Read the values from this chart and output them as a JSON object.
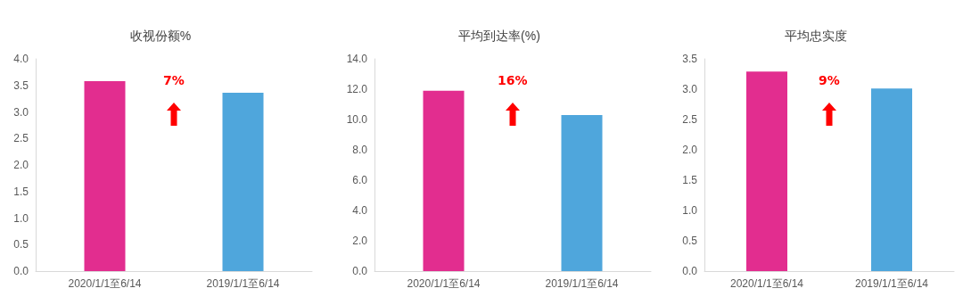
{
  "chart_data": [
    {
      "type": "bar",
      "title": "收视份额%",
      "categories": [
        "2020/1/1至6/14",
        "2019/1/1至6/14"
      ],
      "values": [
        3.58,
        3.36
      ],
      "colors": [
        "#e22d8f",
        "#4fa6dc"
      ],
      "ylim": [
        0,
        4
      ],
      "yticks": [
        {
          "value": 0,
          "label": "0.0"
        },
        {
          "value": 0.5,
          "label": "0.5"
        },
        {
          "value": 1,
          "label": "1.0"
        },
        {
          "value": 1.5,
          "label": "1.5"
        },
        {
          "value": 2,
          "label": "2.0"
        },
        {
          "value": 2.5,
          "label": "2.5"
        },
        {
          "value": 3,
          "label": "3.0"
        },
        {
          "value": 3.5,
          "label": "3.5"
        },
        {
          "value": 4,
          "label": "4.0"
        }
      ],
      "grid": false,
      "annotations": [
        "7%"
      ]
    },
    {
      "type": "bar",
      "title": "平均到达率(%)",
      "categories": [
        "2020/1/1至6/14",
        "2019/1/1至6/14"
      ],
      "values": [
        11.9,
        10.3
      ],
      "colors": [
        "#e22d8f",
        "#4fa6dc"
      ],
      "ylim": [
        0,
        14
      ],
      "yticks": [
        {
          "value": 0,
          "label": "0.0"
        },
        {
          "value": 2,
          "label": "2.0"
        },
        {
          "value": 4,
          "label": "4.0"
        },
        {
          "value": 6,
          "label": "6.0"
        },
        {
          "value": 8,
          "label": "8.0"
        },
        {
          "value": 10,
          "label": "10.0"
        },
        {
          "value": 12,
          "label": "12.0"
        },
        {
          "value": 14,
          "label": "14.0"
        }
      ],
      "grid": false,
      "annotations": [
        "16%"
      ]
    },
    {
      "type": "bar",
      "title": "平均忠实度",
      "categories": [
        "2020/1/1至6/14",
        "2019/1/1至6/14"
      ],
      "values": [
        3.29,
        3.01
      ],
      "colors": [
        "#e22d8f",
        "#4fa6dc"
      ],
      "ylim": [
        0,
        3.5
      ],
      "yticks": [
        {
          "value": 0,
          "label": "0.0"
        },
        {
          "value": 0.5,
          "label": "0.5"
        },
        {
          "value": 1,
          "label": "1.0"
        },
        {
          "value": 1.5,
          "label": "1.5"
        },
        {
          "value": 2,
          "label": "2.0"
        },
        {
          "value": 2.5,
          "label": "2.5"
        },
        {
          "value": 3,
          "label": "3.0"
        },
        {
          "value": 3.5,
          "label": "3.5"
        }
      ],
      "grid": false,
      "annotations": [
        "9%"
      ]
    }
  ]
}
